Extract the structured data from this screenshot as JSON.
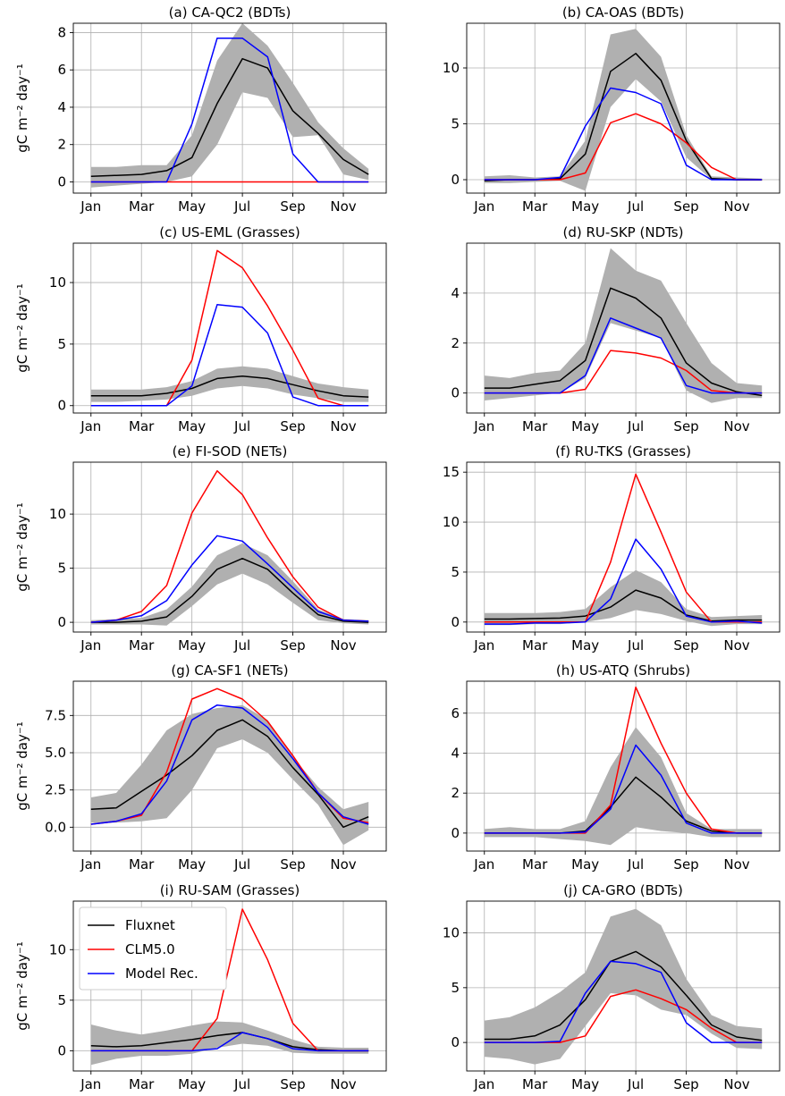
{
  "figure": {
    "ylabel": "gC m⁻² day⁻¹",
    "month_labels": [
      "Jan",
      "Mar",
      "May",
      "Jul",
      "Sep",
      "Nov"
    ],
    "legend": {
      "placement": "upper-left of panel (i)",
      "entries": [
        {
          "name": "Fluxnet",
          "color": "#000000"
        },
        {
          "name": "CLM5.0",
          "color": "#ff0000"
        },
        {
          "name": "Model Rec.",
          "color": "#0000ff"
        }
      ]
    },
    "colors": {
      "fluxnet": "#000000",
      "clm": "#ff0000",
      "model": "#0000ff",
      "band": "#b0b0b0",
      "grid": "#b0b0b0"
    }
  },
  "chart_data": [
    {
      "type": "line",
      "title": "(a) CA-QC2 (BDTs)",
      "ylabel": "gC m⁻² day⁻¹",
      "x": [
        1,
        2,
        3,
        4,
        5,
        6,
        7,
        8,
        9,
        10,
        11,
        12
      ],
      "xlim": [
        0.3,
        12.7
      ],
      "ylim": [
        -0.6,
        8.5
      ],
      "yticks": [
        0,
        2,
        4,
        6,
        8
      ],
      "grid": true,
      "band": {
        "lower": [
          -0.3,
          -0.2,
          -0.1,
          0.0,
          0.3,
          2.0,
          4.8,
          4.5,
          2.4,
          2.5,
          0.4,
          0.1
        ],
        "upper": [
          0.8,
          0.8,
          0.9,
          0.9,
          2.5,
          6.5,
          8.5,
          7.3,
          5.3,
          3.2,
          1.8,
          0.7
        ]
      },
      "series": [
        {
          "name": "Fluxnet",
          "values": [
            0.3,
            0.35,
            0.4,
            0.6,
            1.3,
            4.2,
            6.6,
            6.1,
            3.8,
            2.6,
            1.2,
            0.4
          ]
        },
        {
          "name": "CLM5.0",
          "values": [
            0,
            0,
            0,
            0,
            0,
            0,
            0,
            0,
            0,
            0,
            0,
            0
          ]
        },
        {
          "name": "Model Rec.",
          "values": [
            0,
            0,
            0,
            0,
            3.1,
            7.7,
            7.7,
            6.7,
            1.5,
            0,
            0,
            0
          ]
        }
      ]
    },
    {
      "type": "line",
      "title": "(b) CA-OAS (BDTs)",
      "ylabel": "",
      "x": [
        1,
        2,
        3,
        4,
        5,
        6,
        7,
        8,
        9,
        10,
        11,
        12
      ],
      "xlim": [
        0.3,
        12.7
      ],
      "ylim": [
        -1.2,
        14.0
      ],
      "yticks": [
        0,
        5,
        10
      ],
      "grid": true,
      "band": {
        "lower": [
          -0.3,
          -0.3,
          -0.2,
          -0.1,
          -1.0,
          6.5,
          9.0,
          7.0,
          2.0,
          0.0,
          -0.1,
          -0.1
        ],
        "upper": [
          0.3,
          0.4,
          0.2,
          0.3,
          3.5,
          13.0,
          13.5,
          11.0,
          4.0,
          0.3,
          0.2,
          0.1
        ]
      },
      "series": [
        {
          "name": "Fluxnet",
          "values": [
            -0.1,
            0,
            0,
            0.1,
            2.3,
            9.7,
            11.3,
            8.9,
            3.5,
            0.1,
            0,
            0
          ]
        },
        {
          "name": "CLM5.0",
          "values": [
            0,
            0,
            0,
            0,
            0.6,
            5.1,
            5.9,
            5.0,
            3.3,
            1.1,
            0,
            0
          ]
        },
        {
          "name": "Model Rec.",
          "values": [
            0,
            0,
            0,
            0.2,
            4.8,
            8.2,
            7.8,
            6.8,
            1.3,
            0,
            0,
            0
          ]
        }
      ]
    },
    {
      "type": "line",
      "title": "(c) US-EML (Grasses)",
      "ylabel": "gC m⁻² day⁻¹",
      "x": [
        1,
        2,
        3,
        4,
        5,
        6,
        7,
        8,
        9,
        10,
        11,
        12
      ],
      "xlim": [
        0.3,
        12.7
      ],
      "ylim": [
        -0.6,
        13.2
      ],
      "yticks": [
        0,
        5,
        10
      ],
      "grid": true,
      "band": {
        "lower": [
          0.3,
          0.3,
          0.4,
          0.5,
          0.8,
          1.4,
          1.6,
          1.4,
          0.9,
          0.6,
          0.3,
          0.3
        ],
        "upper": [
          1.3,
          1.3,
          1.3,
          1.5,
          2.0,
          3.0,
          3.2,
          3.0,
          2.4,
          1.8,
          1.5,
          1.3
        ]
      },
      "series": [
        {
          "name": "Fluxnet",
          "values": [
            0.8,
            0.8,
            0.8,
            1.0,
            1.4,
            2.2,
            2.4,
            2.2,
            1.7,
            1.2,
            0.8,
            0.7
          ]
        },
        {
          "name": "CLM5.0",
          "values": [
            0,
            0,
            0,
            0,
            3.7,
            12.6,
            11.2,
            8.1,
            4.5,
            0.6,
            0,
            0
          ]
        },
        {
          "name": "Model Rec.",
          "values": [
            0,
            0,
            0,
            0,
            1.6,
            8.2,
            8.0,
            5.9,
            0.7,
            0,
            0,
            0
          ]
        }
      ]
    },
    {
      "type": "line",
      "title": "(d) RU-SKP (NDTs)",
      "ylabel": "",
      "x": [
        1,
        2,
        3,
        4,
        5,
        6,
        7,
        8,
        9,
        10,
        11,
        12
      ],
      "xlim": [
        0.3,
        12.7
      ],
      "ylim": [
        -0.8,
        6.0
      ],
      "yticks": [
        0,
        2,
        4
      ],
      "grid": true,
      "band": {
        "lower": [
          -0.3,
          -0.2,
          -0.1,
          0.0,
          0.6,
          2.8,
          2.5,
          2.2,
          0.1,
          -0.4,
          -0.2,
          -0.2
        ],
        "upper": [
          0.7,
          0.6,
          0.8,
          0.9,
          2.0,
          5.8,
          4.9,
          4.5,
          2.8,
          1.2,
          0.4,
          0.3
        ]
      },
      "series": [
        {
          "name": "Fluxnet",
          "values": [
            0.2,
            0.2,
            0.35,
            0.5,
            1.3,
            4.2,
            3.8,
            3.0,
            1.2,
            0.4,
            0.05,
            -0.1
          ]
        },
        {
          "name": "CLM5.0",
          "values": [
            0,
            0,
            0,
            0,
            0.15,
            1.7,
            1.6,
            1.4,
            0.9,
            0.1,
            0,
            0
          ]
        },
        {
          "name": "Model Rec.",
          "values": [
            0,
            0,
            0,
            0,
            0.7,
            3.0,
            2.6,
            2.2,
            0.3,
            0,
            0,
            0
          ]
        }
      ]
    },
    {
      "type": "line",
      "title": "(e) FI-SOD (NETs)",
      "ylabel": "gC m⁻² day⁻¹",
      "x": [
        1,
        2,
        3,
        4,
        5,
        6,
        7,
        8,
        9,
        10,
        11,
        12
      ],
      "xlim": [
        0.3,
        12.7
      ],
      "ylim": [
        -0.9,
        14.8
      ],
      "yticks": [
        0,
        5,
        10
      ],
      "grid": true,
      "band": {
        "lower": [
          -0.2,
          -0.2,
          -0.2,
          -0.3,
          1.5,
          3.5,
          4.5,
          3.5,
          1.8,
          0.2,
          -0.1,
          -0.2
        ],
        "upper": [
          0.2,
          0.3,
          0.4,
          1.2,
          3.3,
          6.2,
          7.3,
          6.2,
          3.8,
          1.2,
          0.3,
          0.2
        ]
      },
      "series": [
        {
          "name": "Fluxnet",
          "values": [
            0,
            0,
            0.1,
            0.5,
            2.4,
            4.9,
            5.9,
            4.9,
            2.7,
            0.7,
            0.1,
            0
          ]
        },
        {
          "name": "CLM5.0",
          "values": [
            0,
            0.2,
            1.0,
            3.4,
            10.1,
            14.0,
            11.8,
            7.8,
            4.2,
            1.4,
            0.2,
            0.1
          ]
        },
        {
          "name": "Model Rec.",
          "values": [
            0,
            0.2,
            0.6,
            2.0,
            5.3,
            8.0,
            7.5,
            5.4,
            3.2,
            1.0,
            0.2,
            0.1
          ]
        }
      ]
    },
    {
      "type": "line",
      "title": "(f) RU-TKS (Grasses)",
      "ylabel": "",
      "x": [
        1,
        2,
        3,
        4,
        5,
        6,
        7,
        8,
        9,
        10,
        11,
        12
      ],
      "xlim": [
        0.3,
        12.7
      ],
      "ylim": [
        -1.0,
        16.0
      ],
      "yticks": [
        0,
        5,
        10,
        15
      ],
      "grid": true,
      "band": {
        "lower": [
          -0.3,
          -0.3,
          -0.2,
          -0.2,
          0.0,
          0.4,
          1.2,
          0.8,
          0.1,
          -0.4,
          -0.2,
          -0.2
        ],
        "upper": [
          0.9,
          0.9,
          0.9,
          1.0,
          1.3,
          3.5,
          5.2,
          4.0,
          1.3,
          0.5,
          0.6,
          0.7
        ]
      },
      "series": [
        {
          "name": "Fluxnet",
          "values": [
            0.3,
            0.3,
            0.35,
            0.4,
            0.6,
            1.5,
            3.2,
            2.4,
            0.7,
            0.1,
            0.2,
            0.2
          ]
        },
        {
          "name": "CLM5.0",
          "values": [
            0,
            0,
            0,
            0,
            0,
            6.0,
            14.8,
            9.0,
            3.0,
            0,
            0,
            0
          ]
        },
        {
          "name": "Model Rec.",
          "values": [
            -0.2,
            -0.2,
            -0.1,
            -0.1,
            0,
            2.3,
            8.3,
            5.3,
            0.6,
            0,
            0.1,
            -0.1
          ]
        }
      ]
    },
    {
      "type": "line",
      "title": "(g) CA-SF1 (NETs)",
      "ylabel": "gC m⁻² day⁻¹",
      "x": [
        1,
        2,
        3,
        4,
        5,
        6,
        7,
        8,
        9,
        10,
        11,
        12
      ],
      "xlim": [
        0.3,
        12.7
      ],
      "ylim": [
        -1.6,
        9.8
      ],
      "yticks": [
        0.0,
        2.5,
        5.0,
        7.5
      ],
      "grid": true,
      "band": {
        "lower": [
          0.3,
          0.3,
          0.4,
          0.6,
          2.5,
          5.3,
          5.9,
          5.0,
          3.2,
          1.5,
          -1.2,
          -0.2
        ],
        "upper": [
          2.0,
          2.3,
          4.2,
          6.5,
          7.6,
          8.0,
          8.2,
          7.2,
          4.7,
          2.7,
          1.2,
          1.7
        ]
      },
      "series": [
        {
          "name": "Fluxnet",
          "values": [
            1.2,
            1.3,
            2.4,
            3.5,
            4.8,
            6.5,
            7.2,
            6.1,
            4.0,
            2.2,
            0.0,
            0.7
          ]
        },
        {
          "name": "CLM5.0",
          "values": [
            0.2,
            0.4,
            0.8,
            3.7,
            8.6,
            9.3,
            8.6,
            7.1,
            4.8,
            2.3,
            0.6,
            0.3
          ]
        },
        {
          "name": "Model Rec.",
          "values": [
            0.2,
            0.4,
            0.9,
            3.1,
            7.2,
            8.2,
            8.0,
            6.7,
            4.6,
            2.3,
            0.7,
            0.2
          ]
        }
      ]
    },
    {
      "type": "line",
      "title": "(h) US-ATQ (Shrubs)",
      "ylabel": "",
      "x": [
        1,
        2,
        3,
        4,
        5,
        6,
        7,
        8,
        9,
        10,
        11,
        12
      ],
      "xlim": [
        0.3,
        12.7
      ],
      "ylim": [
        -0.9,
        7.6
      ],
      "yticks": [
        0,
        2,
        4,
        6
      ],
      "grid": true,
      "band": {
        "lower": [
          -0.2,
          -0.2,
          -0.2,
          -0.3,
          -0.4,
          -0.6,
          0.3,
          0.1,
          0.0,
          -0.2,
          -0.2,
          -0.2
        ],
        "upper": [
          0.2,
          0.3,
          0.2,
          0.2,
          0.6,
          3.3,
          5.3,
          3.8,
          1.0,
          0.2,
          0.2,
          0.2
        ]
      },
      "series": [
        {
          "name": "Fluxnet",
          "values": [
            0,
            0,
            0,
            0,
            0.1,
            1.3,
            2.8,
            1.8,
            0.6,
            0.1,
            0,
            0
          ]
        },
        {
          "name": "CLM5.0",
          "values": [
            0,
            0,
            0,
            0,
            0,
            1.4,
            7.3,
            4.5,
            2.0,
            0.2,
            0,
            0
          ]
        },
        {
          "name": "Model Rec.",
          "values": [
            0,
            0,
            0,
            0,
            0.05,
            1.2,
            4.4,
            2.9,
            0.5,
            0,
            0,
            0
          ]
        }
      ]
    },
    {
      "type": "line",
      "title": "(i) RU-SAM (Grasses)",
      "ylabel": "gC m⁻² day⁻¹",
      "x": [
        1,
        2,
        3,
        4,
        5,
        6,
        7,
        8,
        9,
        10,
        11,
        12
      ],
      "xlim": [
        0.3,
        12.7
      ],
      "ylim": [
        -2.0,
        14.8
      ],
      "yticks": [
        0,
        5,
        10
      ],
      "grid": true,
      "band": {
        "lower": [
          -1.4,
          -0.8,
          -0.5,
          -0.5,
          -0.3,
          0.3,
          0.7,
          0.5,
          -0.2,
          -0.3,
          -0.3,
          -0.3
        ],
        "upper": [
          2.6,
          2.0,
          1.6,
          2.0,
          2.5,
          2.9,
          2.8,
          2.0,
          1.1,
          0.4,
          0.3,
          0.3
        ]
      },
      "series": [
        {
          "name": "Fluxnet",
          "values": [
            0.5,
            0.4,
            0.5,
            0.8,
            1.1,
            1.5,
            1.8,
            1.2,
            0.4,
            0.1,
            0,
            0
          ]
        },
        {
          "name": "CLM5.0",
          "values": [
            0,
            0,
            0,
            0,
            0,
            3.2,
            14.0,
            9.0,
            2.7,
            0,
            0,
            0
          ]
        },
        {
          "name": "Model Rec.",
          "values": [
            0,
            0,
            0,
            0,
            0,
            0.2,
            1.8,
            1.2,
            0.2,
            0,
            0,
            0
          ]
        }
      ]
    },
    {
      "type": "line",
      "title": "(j) CA-GRO (BDTs)",
      "ylabel": "",
      "x": [
        1,
        2,
        3,
        4,
        5,
        6,
        7,
        8,
        9,
        10,
        11,
        12
      ],
      "xlim": [
        0.3,
        12.7
      ],
      "ylim": [
        -2.6,
        12.9
      ],
      "yticks": [
        0,
        5,
        10
      ],
      "grid": true,
      "band": {
        "lower": [
          -1.3,
          -1.5,
          -2.0,
          -1.5,
          1.5,
          4.5,
          4.3,
          3.0,
          2.5,
          0.8,
          -0.5,
          -0.6
        ],
        "upper": [
          2.0,
          2.3,
          3.2,
          4.6,
          6.4,
          11.5,
          12.2,
          10.7,
          5.8,
          2.5,
          1.5,
          1.3
        ]
      },
      "series": [
        {
          "name": "Fluxnet",
          "values": [
            0.3,
            0.3,
            0.6,
            1.6,
            3.9,
            7.4,
            8.3,
            6.9,
            4.3,
            1.6,
            0.5,
            0.2
          ]
        },
        {
          "name": "CLM5.0",
          "values": [
            0,
            0,
            0,
            0,
            0.6,
            4.2,
            4.8,
            4.0,
            3.0,
            1.3,
            0,
            0
          ]
        },
        {
          "name": "Model Rec.",
          "values": [
            0,
            0,
            0,
            0.1,
            4.5,
            7.4,
            7.2,
            6.4,
            1.8,
            0,
            0,
            0
          ]
        }
      ]
    }
  ]
}
